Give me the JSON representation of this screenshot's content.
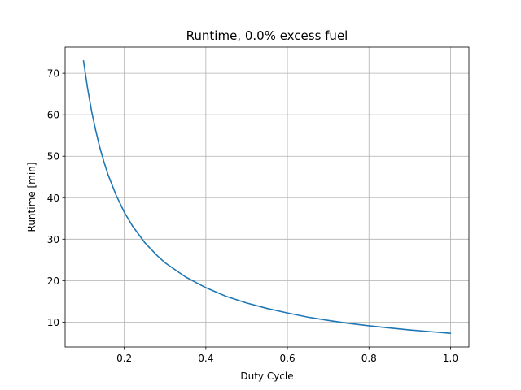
{
  "chart_data": {
    "type": "line",
    "title": "Runtime, 0.0% excess fuel",
    "xlabel": "Duty Cycle",
    "ylabel": "Runtime [min]",
    "xlim": [
      0.055,
      1.045
    ],
    "ylim": [
      4.0,
      76.3
    ],
    "xticks": [
      0.2,
      0.4,
      0.6,
      0.8,
      1.0
    ],
    "xtick_labels": [
      "0.2",
      "0.4",
      "0.6",
      "0.8",
      "1.0"
    ],
    "yticks": [
      10,
      20,
      30,
      40,
      50,
      60,
      70
    ],
    "ytick_labels": [
      "10",
      "20",
      "30",
      "40",
      "50",
      "60",
      "70"
    ],
    "grid": true,
    "series": [
      {
        "color": "#1f77b4",
        "x": [
          0.1,
          0.11,
          0.12,
          0.13,
          0.14,
          0.15,
          0.16,
          0.18,
          0.2,
          0.22,
          0.25,
          0.28,
          0.3,
          0.35,
          0.4,
          0.45,
          0.5,
          0.55,
          0.6,
          0.65,
          0.7,
          0.75,
          0.8,
          0.85,
          0.9,
          0.95,
          1.0
        ],
        "y": [
          73.0,
          66.4,
          60.8,
          56.2,
          52.1,
          48.7,
          45.6,
          40.6,
          36.5,
          33.2,
          29.2,
          26.1,
          24.3,
          20.9,
          18.3,
          16.2,
          14.6,
          13.3,
          12.2,
          11.2,
          10.4,
          9.7,
          9.1,
          8.6,
          8.1,
          7.7,
          7.3
        ]
      }
    ]
  }
}
